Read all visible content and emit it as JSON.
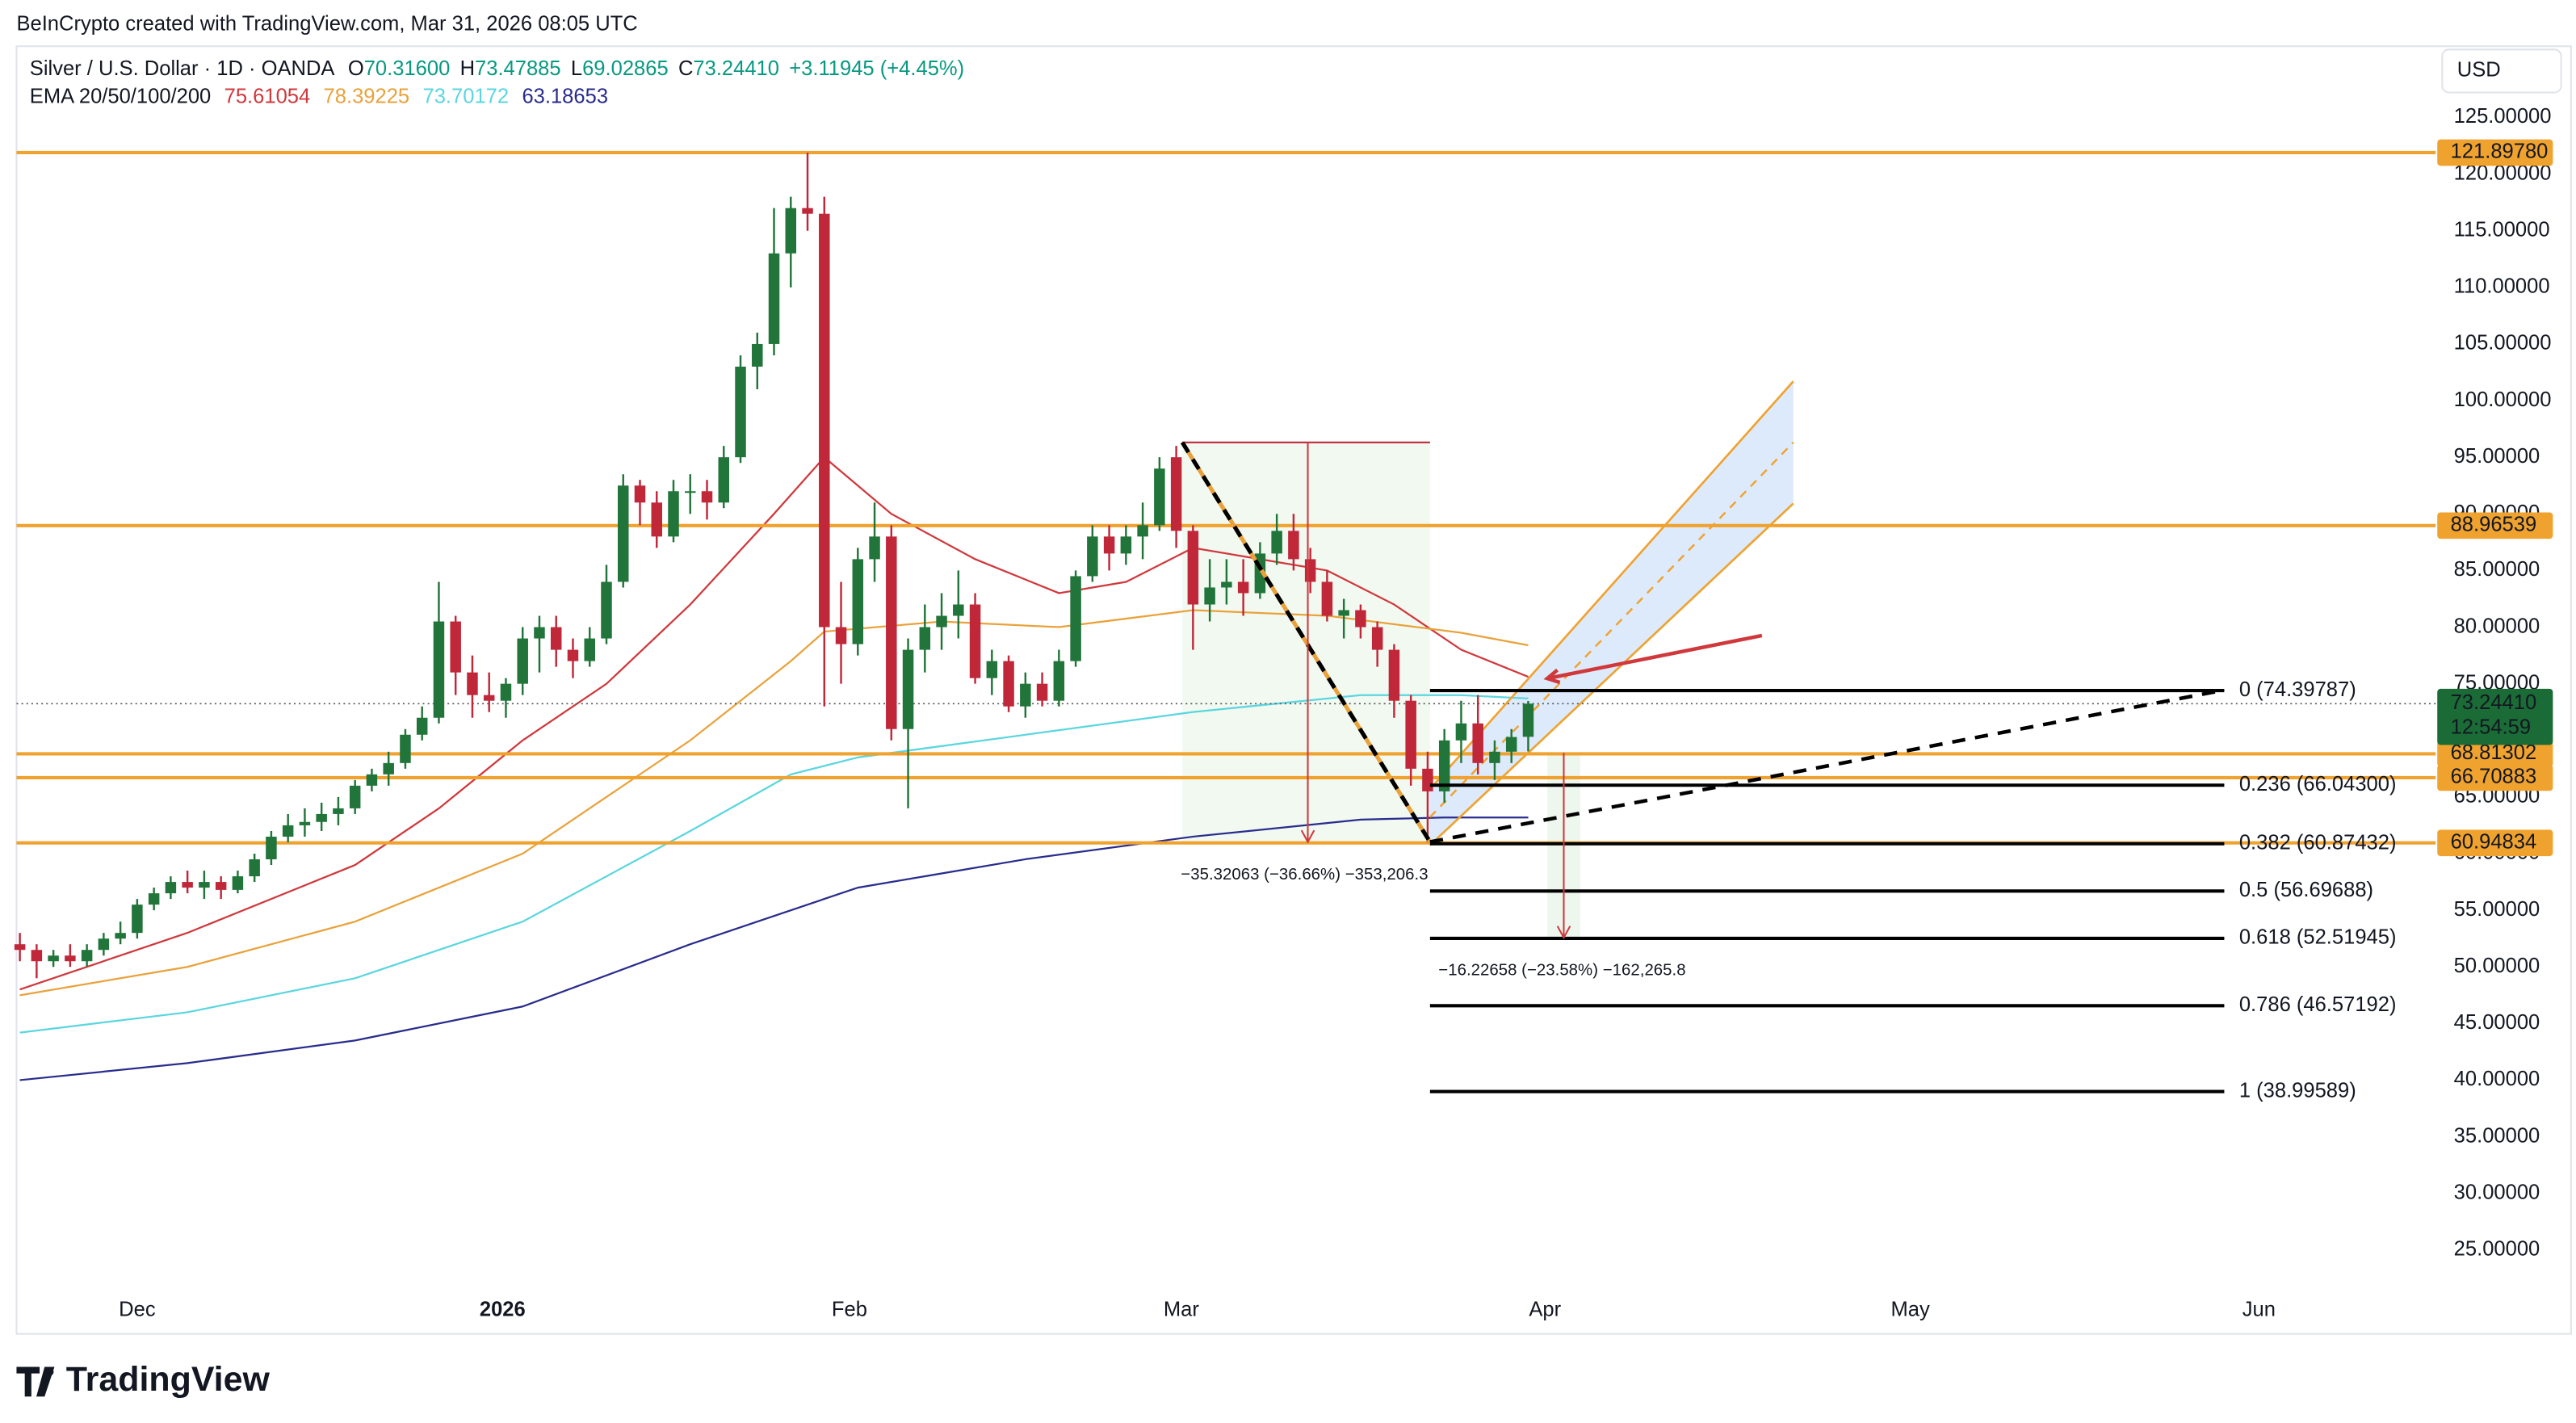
{
  "header": {
    "credit": "BeInCrypto created with TradingView.com, Mar 31, 2026 08:05 UTC",
    "symbol": "Silver / U.S. Dollar · 1D · OANDA",
    "ohlc": [
      {
        "key": "O",
        "value": "70.31600"
      },
      {
        "key": "H",
        "value": "73.47885"
      },
      {
        "key": "L",
        "value": "69.02865"
      },
      {
        "key": "C",
        "value": "73.24410"
      }
    ],
    "change": "+3.11945 (+4.45%)",
    "currency": "USD"
  },
  "footer": {
    "brand": "TradingView"
  },
  "chart_data": {
    "type": "candlestick",
    "up_color": "#22753a",
    "down_color": "#c0283a",
    "categories": [
      null,
      null,
      null,
      null,
      null,
      null,
      null,
      null,
      null,
      null,
      null,
      null,
      null,
      null,
      null,
      null,
      null,
      null,
      null,
      null,
      null,
      null,
      null,
      null,
      null,
      null,
      null,
      null,
      null,
      null,
      null,
      null,
      null,
      null,
      null,
      null,
      null,
      null,
      null,
      null,
      null,
      null,
      null,
      null,
      null,
      null,
      null,
      null,
      null,
      null,
      null,
      null,
      null,
      null,
      null,
      null,
      null,
      null,
      null,
      null,
      null,
      null,
      null,
      null,
      null,
      null,
      null,
      null,
      null,
      null,
      null,
      null,
      null,
      null,
      null,
      null,
      null,
      null,
      null,
      null,
      null,
      null,
      null,
      null,
      null,
      null,
      null,
      null,
      null,
      null,
      null
    ],
    "ohlc": [
      [
        52,
        53,
        50.5,
        51.5
      ],
      [
        51.5,
        52,
        49,
        50.5
      ],
      [
        50.5,
        51.5,
        50,
        51
      ],
      [
        51,
        52,
        50,
        50.5
      ],
      [
        50.5,
        52,
        50,
        51.5
      ],
      [
        51.5,
        53,
        51,
        52.5
      ],
      [
        52.5,
        54,
        52,
        53
      ],
      [
        53,
        56,
        52.5,
        55.5
      ],
      [
        55.5,
        57,
        55,
        56.5
      ],
      [
        56.5,
        58,
        56,
        57.5
      ],
      [
        57.5,
        58.5,
        56.5,
        57
      ],
      [
        57,
        58.5,
        56,
        57.5
      ],
      [
        57.5,
        58,
        56,
        56.8
      ],
      [
        56.8,
        58.5,
        56.5,
        58
      ],
      [
        58,
        60,
        57.5,
        59.5
      ],
      [
        59.5,
        62,
        59,
        61.5
      ],
      [
        61.5,
        63.5,
        61,
        62.5
      ],
      [
        62.5,
        64,
        61.5,
        62.8
      ],
      [
        62.8,
        64.5,
        62,
        63.5
      ],
      [
        63.5,
        65,
        62.5,
        64
      ],
      [
        64,
        66.5,
        63.5,
        66
      ],
      [
        66,
        67.5,
        65.5,
        67
      ],
      [
        67,
        69,
        66,
        68
      ],
      [
        68,
        71,
        67.5,
        70.5
      ],
      [
        70.5,
        73,
        70,
        72
      ],
      [
        72,
        84,
        71.5,
        80.5
      ],
      [
        80.5,
        81,
        74,
        76
      ],
      [
        76,
        77.5,
        72,
        74
      ],
      [
        74,
        76,
        72.5,
        73.5
      ],
      [
        73.5,
        75.5,
        72,
        75
      ],
      [
        75,
        80,
        74,
        79
      ],
      [
        79,
        81,
        76,
        80
      ],
      [
        80,
        81,
        76.5,
        78
      ],
      [
        78,
        79,
        75.5,
        77
      ],
      [
        77,
        80,
        76.5,
        79
      ],
      [
        79,
        85.5,
        78.5,
        84
      ],
      [
        84,
        93.5,
        83.5,
        92.5
      ],
      [
        92.5,
        93,
        89,
        91
      ],
      [
        91,
        92,
        87,
        88
      ],
      [
        88,
        93,
        87.5,
        92
      ],
      [
        92,
        93.5,
        90,
        92
      ],
      [
        92,
        93,
        89.5,
        91
      ],
      [
        91,
        96,
        90.5,
        95
      ],
      [
        95,
        104,
        94.5,
        103
      ],
      [
        103,
        106,
        101,
        105
      ],
      [
        105,
        117,
        104,
        113
      ],
      [
        113,
        118,
        110,
        117
      ],
      [
        117,
        121.9,
        115,
        116.5
      ],
      [
        116.5,
        118,
        73,
        80
      ],
      [
        80,
        84,
        75,
        78.5
      ],
      [
        78.5,
        87,
        77.5,
        86
      ],
      [
        86,
        91,
        84,
        88
      ],
      [
        88,
        89,
        70,
        71
      ],
      [
        71,
        79,
        64,
        78
      ],
      [
        78,
        82,
        76,
        80
      ],
      [
        80,
        83,
        78,
        81
      ],
      [
        81,
        85,
        79,
        82
      ],
      [
        82,
        83,
        75,
        75.5
      ],
      [
        75.5,
        78,
        74,
        77
      ],
      [
        77,
        77.5,
        72.5,
        73
      ],
      [
        73,
        76,
        72,
        75
      ],
      [
        75,
        76,
        73,
        73.5
      ],
      [
        73.5,
        78,
        73,
        77
      ],
      [
        77,
        85,
        76.5,
        84.5
      ],
      [
        84.5,
        89,
        84,
        88
      ],
      [
        88,
        89,
        85,
        86.5
      ],
      [
        86.5,
        89,
        85.5,
        88
      ],
      [
        88,
        91,
        86,
        89
      ],
      [
        89,
        95,
        88.5,
        94
      ],
      [
        95,
        96,
        87,
        88.5
      ],
      [
        88.5,
        89,
        78,
        82
      ],
      [
        82,
        86,
        80.5,
        83.5
      ],
      [
        83.5,
        86,
        82,
        84
      ],
      [
        84,
        86,
        81,
        83
      ],
      [
        83,
        87.5,
        82.5,
        86.5
      ],
      [
        86.5,
        90,
        85.5,
        88.5
      ],
      [
        88.5,
        90,
        85,
        86
      ],
      [
        86,
        87,
        83,
        84
      ],
      [
        84,
        85,
        80.5,
        81
      ],
      [
        81,
        82.5,
        79,
        81.5
      ],
      [
        81.5,
        82,
        79,
        80
      ],
      [
        80,
        80.5,
        76.5,
        78
      ],
      [
        78,
        78.5,
        72,
        73.5
      ],
      [
        73.5,
        74,
        66,
        67.5
      ],
      [
        67.5,
        69,
        61,
        65.5
      ],
      [
        65.5,
        71,
        64.5,
        70
      ],
      [
        70,
        73.5,
        68,
        71.5
      ],
      [
        71.5,
        74,
        67,
        68
      ],
      [
        68,
        70,
        66.5,
        69
      ],
      [
        69,
        71,
        68,
        70.3
      ],
      [
        70.316,
        73.47885,
        69.02865,
        73.2441
      ]
    ],
    "ema_title": "EMA 20/50/100/200",
    "emas": [
      {
        "color": "#d0383c",
        "last": "75.61054",
        "x": [
          0,
          10,
          20,
          25,
          30,
          35,
          40,
          45,
          48,
          52,
          57,
          62,
          66,
          70,
          74,
          78,
          82,
          86,
          90
        ],
        "values": [
          48,
          53,
          59,
          64,
          70,
          75,
          82,
          90,
          95,
          90,
          86,
          83,
          84,
          87,
          86,
          85,
          82,
          78,
          75.61
        ]
      },
      {
        "color": "#e9a23b",
        "last": "78.39225",
        "x": [
          0,
          10,
          20,
          30,
          40,
          46,
          48,
          55,
          62,
          70,
          78,
          86,
          90
        ],
        "values": [
          47.5,
          50,
          54,
          60,
          70,
          77,
          79.6,
          80.5,
          80,
          81.5,
          81,
          79.5,
          78.39
        ]
      },
      {
        "color": "#5ad6df",
        "last": "73.70172",
        "x": [
          0,
          10,
          20,
          30,
          40,
          46,
          50,
          60,
          70,
          80,
          86,
          90
        ],
        "values": [
          44.2,
          46,
          49,
          54,
          62,
          67,
          68.5,
          70.5,
          72.5,
          74,
          74,
          73.7
        ]
      },
      {
        "color": "#2a2c8c",
        "last": "63.18653",
        "x": [
          0,
          10,
          20,
          30,
          40,
          50,
          60,
          70,
          80,
          85,
          90
        ],
        "values": [
          40,
          41.5,
          43.5,
          46.5,
          52,
          57,
          59.5,
          61.5,
          63,
          63.2,
          63.19
        ]
      }
    ],
    "level_color": "#f0a22e",
    "levels": [
      {
        "value": 121.8978,
        "label": "121.89780"
      },
      {
        "value": 88.96539,
        "label": "88.96539"
      },
      {
        "value": 68.81302,
        "label": "68.81302"
      },
      {
        "value": 66.70883,
        "label": "66.70883"
      },
      {
        "value": 60.94834,
        "label": "60.94834"
      }
    ],
    "last_price": {
      "value": 73.2441,
      "label": "73.24410",
      "countdown": "12:54:59",
      "color": "#1a6b35"
    },
    "fib": [
      {
        "value": 74.39787,
        "label": "0 (74.39787)"
      },
      {
        "value": 66.043,
        "label": "0.236 (66.04300)"
      },
      {
        "value": 60.87432,
        "label": "0.382 (60.87432)"
      },
      {
        "value": 56.69688,
        "label": "0.5 (56.69688)"
      },
      {
        "value": 52.51945,
        "label": "0.618 (52.51945)"
      },
      {
        "value": 46.57192,
        "label": "0.786 (46.57192)"
      },
      {
        "value": 38.99589,
        "label": "1 (38.99589)"
      }
    ],
    "annotations": [
      "−35.32063 (−36.66%) −353,206.3",
      "−16.22658 (−23.58%) −162,265.8"
    ],
    "xlim": [
      -0.2,
      143.85
    ],
    "xticks": [
      {
        "value": 7,
        "label": "Dec"
      },
      {
        "value": 28.8,
        "label": "2026"
      },
      {
        "value": 49.5,
        "label": "Feb"
      },
      {
        "value": 69.3,
        "label": "Mar"
      },
      {
        "value": 91,
        "label": "Apr"
      },
      {
        "value": 112.8,
        "label": "May"
      },
      {
        "value": 133.6,
        "label": "Jun"
      }
    ],
    "ylim": [
      17.6,
      131
    ],
    "yticks": [
      {
        "value": 125,
        "label": "125.00000"
      },
      {
        "value": 120,
        "label": "120.00000"
      },
      {
        "value": 115,
        "label": "115.00000"
      },
      {
        "value": 110,
        "label": "110.00000"
      },
      {
        "value": 105,
        "label": "105.00000"
      },
      {
        "value": 100,
        "label": "100.00000"
      },
      {
        "value": 95,
        "label": "95.00000"
      },
      {
        "value": 90,
        "label": "90.00000"
      },
      {
        "value": 85,
        "label": "85.00000"
      },
      {
        "value": 80,
        "label": "80.00000"
      },
      {
        "value": 75,
        "label": "75.00000"
      },
      {
        "value": 70,
        "label": "70.00000"
      },
      {
        "value": 65,
        "label": "65.00000"
      },
      {
        "value": 60,
        "label": "60.00000"
      },
      {
        "value": 55,
        "label": "55.00000"
      },
      {
        "value": 50,
        "label": "50.00000"
      },
      {
        "value": 45,
        "label": "45.00000"
      },
      {
        "value": 40,
        "label": "40.00000"
      },
      {
        "value": 35,
        "label": "35.00000"
      },
      {
        "value": 30,
        "label": "30.00000"
      },
      {
        "value": 25,
        "label": "25.00000"
      }
    ]
  }
}
